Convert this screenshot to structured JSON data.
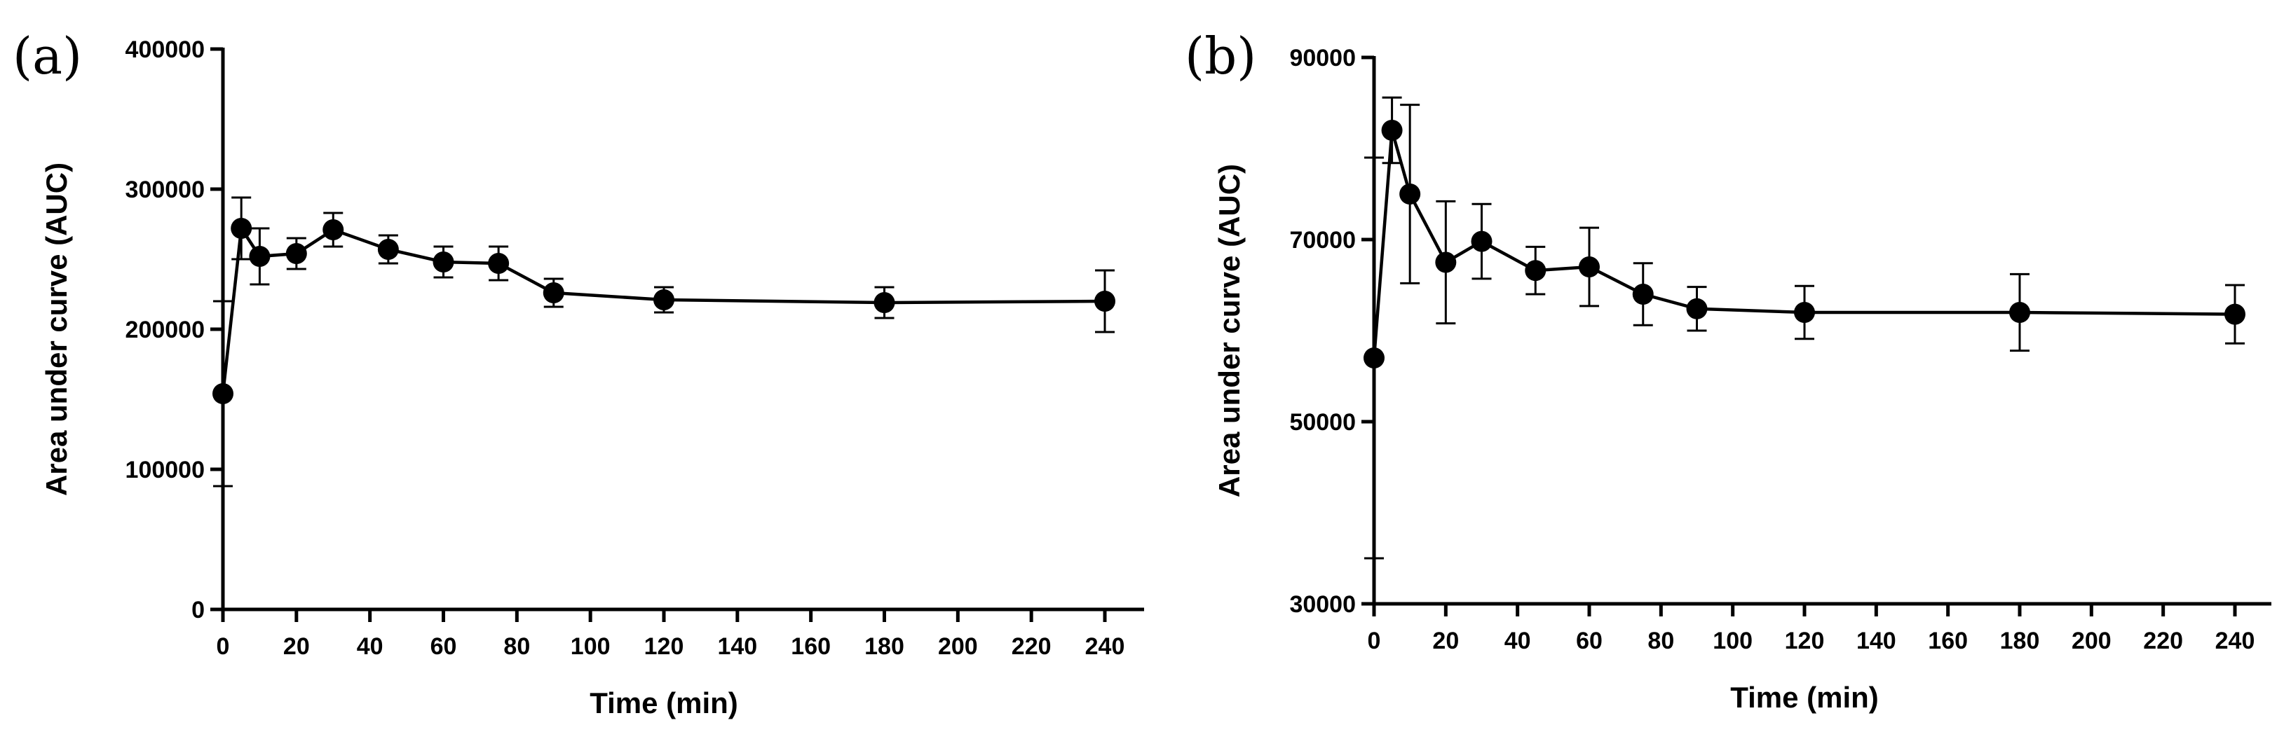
{
  "chart_data": [
    {
      "panel_label": "(a)",
      "type": "line",
      "xlabel": "Time (min)",
      "ylabel": "Area under curve (AUC)",
      "xlim": [
        0,
        250
      ],
      "ylim": [
        0,
        400000
      ],
      "xticks": [
        0,
        20,
        40,
        60,
        80,
        100,
        120,
        140,
        160,
        180,
        200,
        220,
        240
      ],
      "yticks": [
        0,
        100000,
        200000,
        300000,
        400000
      ],
      "series": [
        {
          "name": "AUC",
          "x": [
            0,
            5,
            10,
            20,
            30,
            45,
            60,
            75,
            90,
            120,
            180,
            240
          ],
          "values": [
            154000,
            272000,
            252000,
            254000,
            271000,
            257000,
            248000,
            247000,
            226000,
            221000,
            219000,
            220000
          ],
          "error": [
            66000,
            22000,
            20000,
            11000,
            12000,
            10000,
            11000,
            12000,
            10000,
            9000,
            11000,
            22000
          ]
        }
      ]
    },
    {
      "panel_label": "(b)",
      "type": "line",
      "xlabel": "Time (min)",
      "ylabel": "Area under curve (AUC)",
      "xlim": [
        0,
        250
      ],
      "ylim": [
        30000,
        90000
      ],
      "xticks": [
        0,
        20,
        40,
        60,
        80,
        100,
        120,
        140,
        160,
        180,
        200,
        220,
        240
      ],
      "yticks": [
        30000,
        50000,
        70000,
        90000
      ],
      "series": [
        {
          "name": "AUC",
          "x": [
            0,
            5,
            10,
            20,
            30,
            45,
            60,
            75,
            90,
            120,
            180,
            240
          ],
          "values": [
            57000,
            82000,
            75000,
            67500,
            69800,
            66600,
            67000,
            64000,
            62400,
            62000,
            62000,
            61800
          ],
          "error": [
            22000,
            3600,
            9800,
            6700,
            4100,
            2600,
            4300,
            3400,
            2400,
            2900,
            4200,
            3200
          ]
        }
      ]
    }
  ]
}
